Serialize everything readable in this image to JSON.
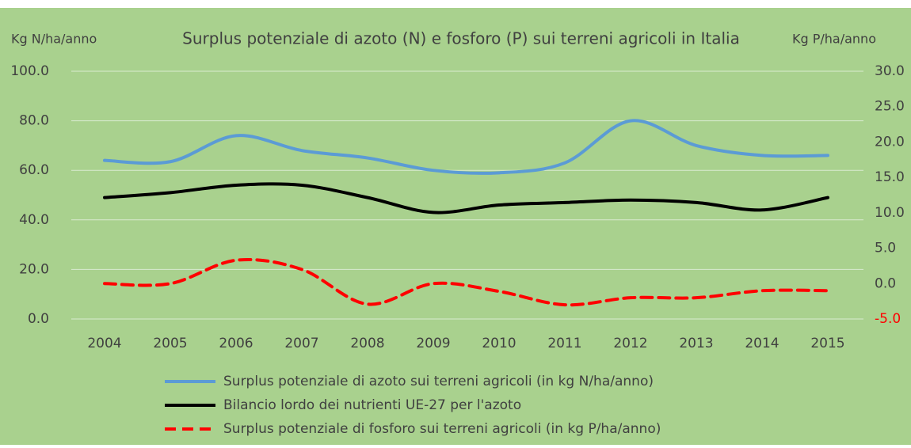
{
  "chart_data": {
    "type": "line",
    "title": "Surplus potenziale di azoto (N) e fosforo (P) sui terreni agricoli in Italia",
    "y_label": "Kg N/ha/anno",
    "y2_label": "Kg P/ha/anno",
    "background": "#a9d18e",
    "grid": true,
    "smooth": true,
    "legend": "bottom",
    "negative_label_color": "#ff0000",
    "categories": [
      "2004",
      "2005",
      "2006",
      "2007",
      "2008",
      "2009",
      "2010",
      "2011",
      "2012",
      "2013",
      "2014",
      "2015"
    ],
    "ylim": [
      0,
      100
    ],
    "yticks": [
      {
        "value": 0,
        "label": "0.0"
      },
      {
        "value": 20,
        "label": "20.0"
      },
      {
        "value": 40,
        "label": "40.0"
      },
      {
        "value": 60,
        "label": "60.0"
      },
      {
        "value": 80,
        "label": "80.0"
      },
      {
        "value": 100,
        "label": "100.0"
      }
    ],
    "y2lim": [
      -5,
      30
    ],
    "y2ticks": [
      {
        "value": -5,
        "label": "-5.0"
      },
      {
        "value": 0,
        "label": "0.0"
      },
      {
        "value": 5,
        "label": "5.0"
      },
      {
        "value": 10,
        "label": "10.0"
      },
      {
        "value": 15,
        "label": "15.0"
      },
      {
        "value": 20,
        "label": "20.0"
      },
      {
        "value": 25,
        "label": "25.0"
      },
      {
        "value": 30,
        "label": "30.0"
      }
    ],
    "series": [
      {
        "name": "Surplus potenziale di azoto sui terreni agricoli (in kg N/ha/anno)",
        "color": "#5b9bd5",
        "dash": "solid",
        "values": [
          64,
          63.5,
          74,
          68,
          65,
          60,
          59,
          63,
          80,
          70,
          66,
          66
        ]
      },
      {
        "name": "Bilancio lordo dei nutrienti UE-27 per l'azoto",
        "color": "#000000",
        "dash": "solid",
        "values": [
          49,
          51,
          54,
          54,
          49,
          43,
          46,
          47,
          48,
          47,
          44,
          49
        ]
      },
      {
        "name": "Surplus potenziale di fosforo sui terreni agricoli (in kg P/ha/anno)",
        "color": "#ff0000",
        "dash": "dashed",
        "axis": "y2",
        "values": [
          0,
          0,
          3.3,
          2,
          -2.9,
          0,
          -1.1,
          -3,
          -2,
          -2,
          -1,
          -1
        ]
      }
    ]
  }
}
